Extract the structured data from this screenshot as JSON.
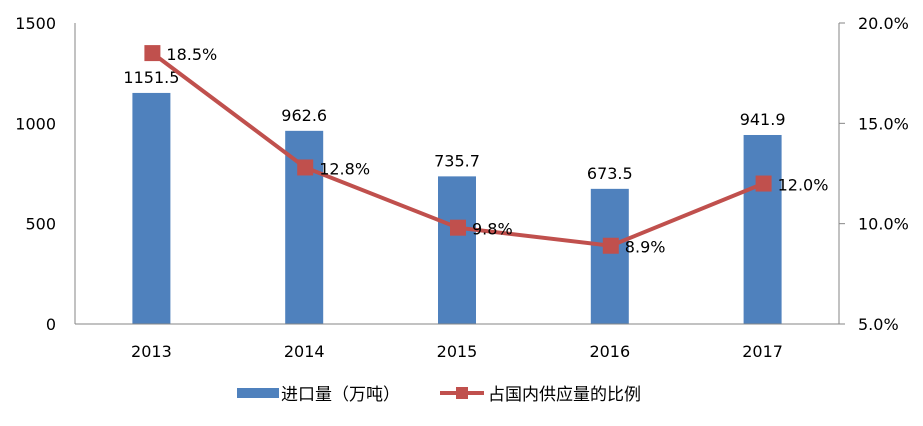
{
  "chart_data": {
    "type": "bar+line",
    "title": "",
    "categories": [
      "2013",
      "2014",
      "2015",
      "2016",
      "2017"
    ],
    "series": [
      {
        "name": "进口量（万吨）",
        "type": "bar",
        "axis": "left",
        "color": "#4F81BD",
        "values": [
          1151.5,
          962.6,
          735.7,
          673.5,
          941.9
        ],
        "labels": [
          "1151.5",
          "962.6",
          "735.7",
          "673.5",
          "941.9"
        ]
      },
      {
        "name": "占国内供应量的比例",
        "type": "line",
        "axis": "right",
        "color": "#C0504D",
        "marker": "square",
        "values": [
          18.5,
          12.8,
          9.8,
          8.9,
          12.0
        ],
        "labels": [
          "18.5%",
          "12.8%",
          "9.8%",
          "8.9%",
          "12.0%"
        ]
      }
    ],
    "left_axis": {
      "ylim": [
        0,
        1500
      ],
      "ticks": [
        "0",
        "500",
        "1000",
        "1500"
      ]
    },
    "right_axis": {
      "ylim": [
        5.0,
        20.0
      ],
      "ticks": [
        "5.0%",
        "10.0%",
        "15.0%",
        "20.0%"
      ]
    },
    "xlabel": "",
    "ylabel": "",
    "grid": false,
    "legend_position": "bottom"
  },
  "legend": {
    "bar_label": "进口量（万吨）",
    "line_label": "占国内供应量的比例"
  }
}
